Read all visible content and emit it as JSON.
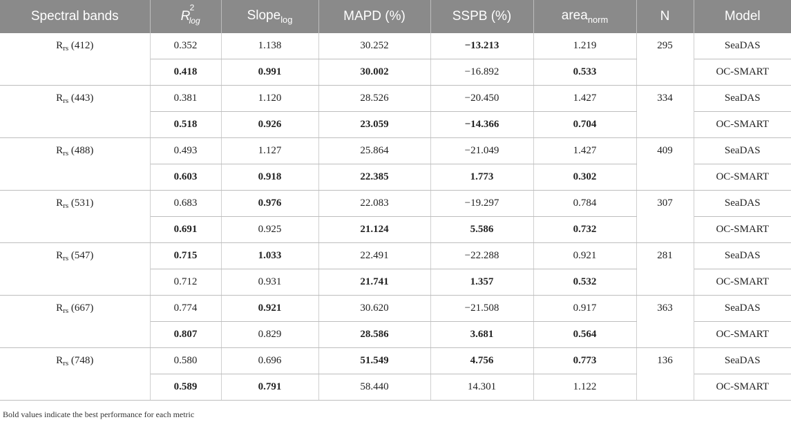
{
  "table": {
    "headers": {
      "band": "Spectral bands",
      "r2_base": "R",
      "r2_sup": "2",
      "r2_sub": "log",
      "slope_base": "Slope",
      "slope_sub": "log",
      "mapd": "MAPD (%)",
      "sspb": "SSPB (%)",
      "area_base": "area",
      "area_sub": "norm",
      "n": "N",
      "model": "Model"
    },
    "rs_label": "R",
    "rs_sub": "rs",
    "groups": [
      {
        "band": "(412)",
        "n": "295",
        "rows": [
          {
            "r2": "0.352",
            "slope": "1.138",
            "mapd": "30.252",
            "sspb": "−13.213",
            "area": "1.219",
            "model": "SeaDAS",
            "bold": [
              "sspb"
            ]
          },
          {
            "r2": "0.418",
            "slope": "0.991",
            "mapd": "30.002",
            "sspb": "−16.892",
            "area": "0.533",
            "model": "OC-SMART",
            "bold": [
              "r2",
              "slope",
              "mapd",
              "area"
            ]
          }
        ]
      },
      {
        "band": "(443)",
        "n": "334",
        "rows": [
          {
            "r2": "0.381",
            "slope": "1.120",
            "mapd": "28.526",
            "sspb": "−20.450",
            "area": "1.427",
            "model": "SeaDAS",
            "bold": []
          },
          {
            "r2": "0.518",
            "slope": "0.926",
            "mapd": "23.059",
            "sspb": "−14.366",
            "area": "0.704",
            "model": "OC-SMART",
            "bold": [
              "r2",
              "slope",
              "mapd",
              "sspb",
              "area"
            ]
          }
        ]
      },
      {
        "band": "(488)",
        "n": "409",
        "rows": [
          {
            "r2": "0.493",
            "slope": "1.127",
            "mapd": "25.864",
            "sspb": "−21.049",
            "area": "1.427",
            "model": "SeaDAS",
            "bold": []
          },
          {
            "r2": "0.603",
            "slope": "0.918",
            "mapd": "22.385",
            "sspb": "1.773",
            "area": "0.302",
            "model": "OC-SMART",
            "bold": [
              "r2",
              "slope",
              "mapd",
              "sspb",
              "area"
            ]
          }
        ]
      },
      {
        "band": "(531)",
        "n": "307",
        "rows": [
          {
            "r2": "0.683",
            "slope": "0.976",
            "mapd": "22.083",
            "sspb": "−19.297",
            "area": "0.784",
            "model": "SeaDAS",
            "bold": [
              "slope"
            ]
          },
          {
            "r2": "0.691",
            "slope": "0.925",
            "mapd": "21.124",
            "sspb": "5.586",
            "area": "0.732",
            "model": "OC-SMART",
            "bold": [
              "r2",
              "mapd",
              "sspb",
              "area"
            ]
          }
        ]
      },
      {
        "band": "(547)",
        "n": "281",
        "rows": [
          {
            "r2": "0.715",
            "slope": "1.033",
            "mapd": "22.491",
            "sspb": "−22.288",
            "area": "0.921",
            "model": "SeaDAS",
            "bold": [
              "r2",
              "slope"
            ]
          },
          {
            "r2": "0.712",
            "slope": "0.931",
            "mapd": "21.741",
            "sspb": "1.357",
            "area": "0.532",
            "model": "OC-SMART",
            "bold": [
              "mapd",
              "sspb",
              "area"
            ]
          }
        ]
      },
      {
        "band": "(667)",
        "n": "363",
        "rows": [
          {
            "r2": "0.774",
            "slope": "0.921",
            "mapd": "30.620",
            "sspb": "−21.508",
            "area": "0.917",
            "model": "SeaDAS",
            "bold": [
              "slope"
            ]
          },
          {
            "r2": "0.807",
            "slope": "0.829",
            "mapd": "28.586",
            "sspb": "3.681",
            "area": "0.564",
            "model": "OC-SMART",
            "bold": [
              "r2",
              "mapd",
              "sspb",
              "area"
            ]
          }
        ]
      },
      {
        "band": "(748)",
        "n": "136",
        "rows": [
          {
            "r2": "0.580",
            "slope": "0.696",
            "mapd": "51.549",
            "sspb": "4.756",
            "area": "0.773",
            "model": "SeaDAS",
            "bold": [
              "mapd",
              "sspb",
              "area"
            ]
          },
          {
            "r2": "0.589",
            "slope": "0.791",
            "mapd": "58.440",
            "sspb": "14.301",
            "area": "1.122",
            "model": "OC-SMART",
            "bold": [
              "r2",
              "slope"
            ]
          }
        ]
      }
    ]
  },
  "footnote": "Bold values indicate the best performance for each metric"
}
